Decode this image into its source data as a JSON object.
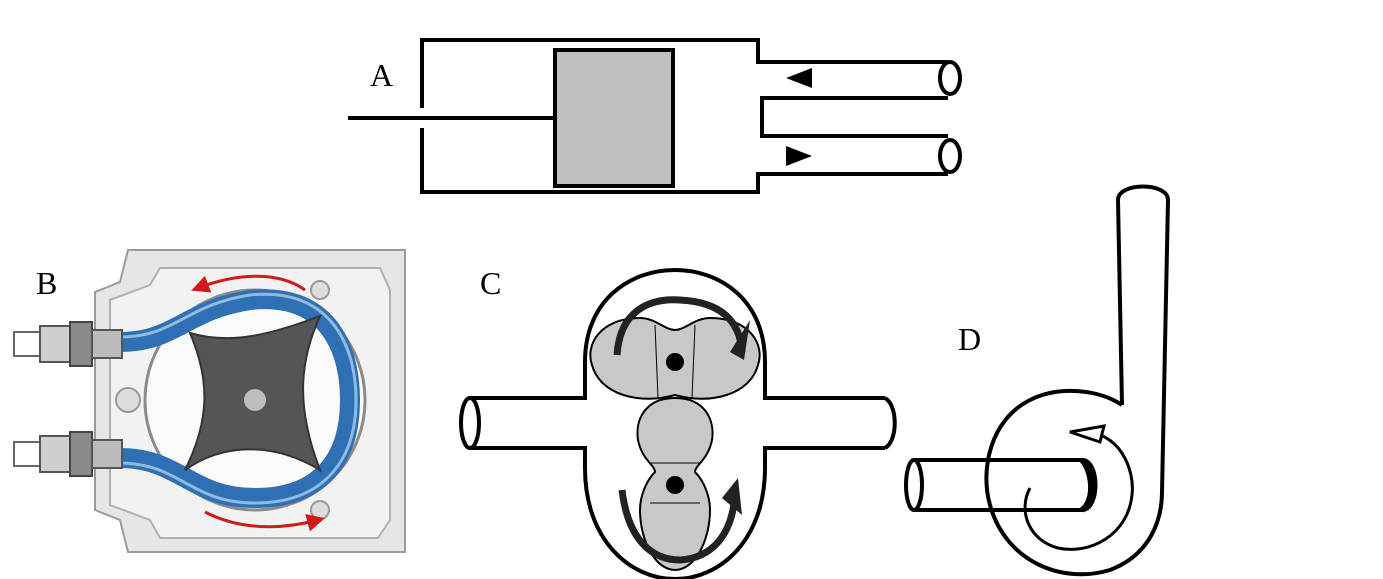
{
  "figure": {
    "panels": [
      {
        "id": "A",
        "label": "A",
        "type": "piston-pump"
      },
      {
        "id": "B",
        "label": "B",
        "type": "peristaltic-pump"
      },
      {
        "id": "C",
        "label": "C",
        "type": "lobe-pump"
      },
      {
        "id": "D",
        "label": "D",
        "type": "centrifugal-pump"
      }
    ],
    "colors": {
      "line": "#000000",
      "piston_fill": "#c0c0c0",
      "lobe_fill": "#c8c8c8",
      "tube_blue": "#2f6fb3",
      "housing": "#e6e6e6",
      "rotor": "#555555",
      "arrow_red": "#d11a1a"
    }
  }
}
